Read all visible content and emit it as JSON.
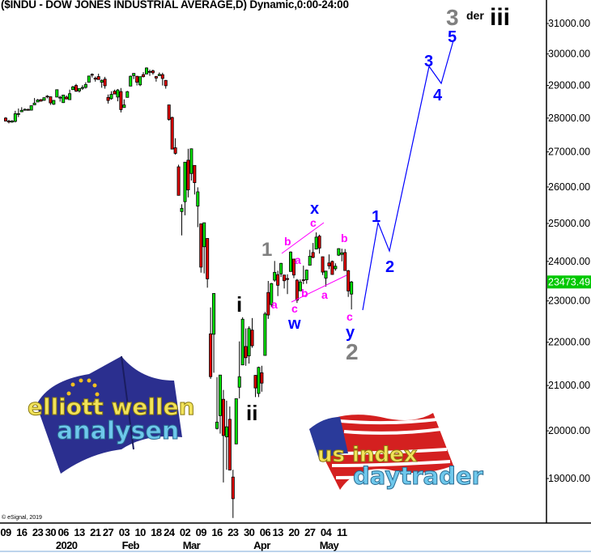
{
  "header": {
    "title": "($INDU - DOW JONES INDUSTRIAL AVERAGE,D) Dynamic,0:00-24:00"
  },
  "copyright": "© eSignal, 2019",
  "logos": {
    "left": {
      "line1": "elliott wellen",
      "line2": "analysen"
    },
    "right": {
      "line1": "us index",
      "line2": "daytrader"
    }
  },
  "colors": {
    "up": "#00e000",
    "down": "#e00000",
    "projection": "#0000ff",
    "current_price_bg": "#00c800",
    "wave_gray": "#808080",
    "wave_blue": "#0000ff",
    "wave_magenta": "#ff00ff",
    "wave_black": "#000000"
  },
  "chart_data": {
    "type": "candlestick",
    "title": "($INDU - DOW JONES INDUSTRIAL AVERAGE,D) Dynamic,0:00-24:00",
    "y_scale": "log",
    "ylim": [
      18100,
      31500
    ],
    "y_ticks": [
      "31000.00",
      "30000.00",
      "29000.00",
      "28000.00",
      "27000.00",
      "26000.00",
      "25000.00",
      "24000.00",
      "23000.00",
      "22000.00",
      "21000.00",
      "20000.00",
      "19000.00"
    ],
    "current_price": "23473.49",
    "x_ticks": [
      {
        "label": "09",
        "bar": 0
      },
      {
        "label": "16",
        "bar": 5
      },
      {
        "label": "23",
        "bar": 10
      },
      {
        "label": "30",
        "bar": 14
      },
      {
        "label": "06",
        "bar": 18
      },
      {
        "label": "13",
        "bar": 23
      },
      {
        "label": "21",
        "bar": 28
      },
      {
        "label": "27",
        "bar": 32
      },
      {
        "label": "03",
        "bar": 37
      },
      {
        "label": "10",
        "bar": 42
      },
      {
        "label": "18",
        "bar": 47
      },
      {
        "label": "24",
        "bar": 51
      },
      {
        "label": "02",
        "bar": 56
      },
      {
        "label": "09",
        "bar": 61
      },
      {
        "label": "16",
        "bar": 66
      },
      {
        "label": "23",
        "bar": 71
      },
      {
        "label": "30",
        "bar": 76
      },
      {
        "label": "06",
        "bar": 81
      },
      {
        "label": "13",
        "bar": 85
      },
      {
        "label": "20",
        "bar": 90
      },
      {
        "label": "27",
        "bar": 95
      },
      {
        "label": "04",
        "bar": 100
      },
      {
        "label": "11",
        "bar": 105
      }
    ],
    "month_labels": [
      {
        "label": "2020",
        "bar": 19
      },
      {
        "label": "Feb",
        "bar": 39
      },
      {
        "label": "Mar",
        "bar": 58
      },
      {
        "label": "Apr",
        "bar": 80
      },
      {
        "label": "May",
        "bar": 101
      }
    ],
    "candles_columns": [
      "date",
      "open",
      "high",
      "low",
      "close"
    ],
    "candles": [
      [
        "2019-12-09",
        28000,
        28030,
        27900,
        27909
      ],
      [
        "2019-12-10",
        27910,
        27950,
        27840,
        27881
      ],
      [
        "2019-12-11",
        27880,
        27940,
        27860,
        27911
      ],
      [
        "2019-12-12",
        27900,
        28220,
        27870,
        28132
      ],
      [
        "2019-12-13",
        28130,
        28290,
        28030,
        28135
      ],
      [
        "2019-12-16",
        28190,
        28330,
        28190,
        28235
      ],
      [
        "2019-12-17",
        28240,
        28290,
        28220,
        28267
      ],
      [
        "2019-12-18",
        28260,
        28290,
        28230,
        28239
      ],
      [
        "2019-12-19",
        28240,
        28380,
        28230,
        28376
      ],
      [
        "2019-12-20",
        28400,
        28610,
        28400,
        28455
      ],
      [
        "2019-12-23",
        28490,
        28580,
        28490,
        28551
      ],
      [
        "2019-12-24",
        28560,
        28580,
        28500,
        28515
      ],
      [
        "2019-12-26",
        28540,
        28630,
        28530,
        28621
      ],
      [
        "2019-12-27",
        28670,
        28700,
        28600,
        28645
      ],
      [
        "2019-12-30",
        28650,
        28660,
        28400,
        28462
      ],
      [
        "2019-12-31",
        28420,
        28550,
        28400,
        28538
      ],
      [
        "2020-01-02",
        28640,
        28870,
        28640,
        28868
      ],
      [
        "2020-01-03",
        28630,
        28680,
        28500,
        28634
      ],
      [
        "2020-01-06",
        28470,
        28710,
        28460,
        28703
      ],
      [
        "2020-01-07",
        28640,
        28690,
        28570,
        28583
      ],
      [
        "2020-01-08",
        28560,
        28870,
        28550,
        28745
      ],
      [
        "2020-01-09",
        28870,
        28990,
        28870,
        28956
      ],
      [
        "2020-01-10",
        29000,
        29050,
        28800,
        28823
      ],
      [
        "2020-01-13",
        28830,
        28910,
        28780,
        28907
      ],
      [
        "2020-01-14",
        28910,
        29010,
        28860,
        28939
      ],
      [
        "2020-01-15",
        28940,
        29100,
        28900,
        29030
      ],
      [
        "2020-01-16",
        29100,
        29300,
        29100,
        29297
      ],
      [
        "2020-01-17",
        29350,
        29380,
        29250,
        29348
      ],
      [
        "2020-01-21",
        29230,
        29280,
        29120,
        29196
      ],
      [
        "2020-01-22",
        29280,
        29370,
        29180,
        29186
      ],
      [
        "2020-01-23",
        29100,
        29190,
        28930,
        29160
      ],
      [
        "2020-01-24",
        29200,
        29270,
        28900,
        28990
      ],
      [
        "2020-01-27",
        28630,
        28720,
        28440,
        28535
      ],
      [
        "2020-01-28",
        28590,
        28820,
        28560,
        28723
      ],
      [
        "2020-01-29",
        28820,
        28870,
        28730,
        28734
      ],
      [
        "2020-01-30",
        28640,
        28890,
        28510,
        28859
      ],
      [
        "2020-01-31",
        28810,
        28920,
        28170,
        28256
      ],
      [
        "2020-02-03",
        28320,
        28570,
        28320,
        28399
      ],
      [
        "2020-02-04",
        28630,
        28830,
        28630,
        28807
      ],
      [
        "2020-02-05",
        28980,
        29310,
        28980,
        29290
      ],
      [
        "2020-02-06",
        29310,
        29380,
        29200,
        29379
      ],
      [
        "2020-02-07",
        29290,
        29290,
        29000,
        29102
      ],
      [
        "2020-02-10",
        29020,
        29280,
        28980,
        29276
      ],
      [
        "2020-02-11",
        29340,
        29420,
        29250,
        29276
      ],
      [
        "2020-02-12",
        29360,
        29570,
        29360,
        29551
      ],
      [
        "2020-02-13",
        29440,
        29500,
        29300,
        29423
      ],
      [
        "2020-02-14",
        29460,
        29500,
        29340,
        29398
      ],
      [
        "2020-02-18",
        29280,
        29300,
        29120,
        29232
      ],
      [
        "2020-02-19",
        29310,
        29410,
        29300,
        29348
      ],
      [
        "2020-02-20",
        29340,
        29400,
        29000,
        29219
      ],
      [
        "2020-02-21",
        29160,
        29170,
        28900,
        28992
      ],
      [
        "2020-02-24",
        28400,
        28400,
        27920,
        27960
      ],
      [
        "2020-02-25",
        28020,
        28040,
        27080,
        27081
      ],
      [
        "2020-02-26",
        27120,
        27400,
        26920,
        26957
      ],
      [
        "2020-02-27",
        26570,
        26630,
        25770,
        25766
      ],
      [
        "2020-02-28",
        25320,
        25520,
        24680,
        25409
      ],
      [
        "2020-03-02",
        25590,
        26710,
        25220,
        26703
      ],
      [
        "2020-03-03",
        26760,
        27090,
        25710,
        25917
      ],
      [
        "2020-03-04",
        26380,
        27100,
        26180,
        27090
      ],
      [
        "2020-03-05",
        26610,
        26610,
        25790,
        26121
      ],
      [
        "2020-03-06",
        25470,
        25990,
        24900,
        25864
      ],
      [
        "2020-03-09",
        24990,
        24990,
        23710,
        23851
      ],
      [
        "2020-03-10",
        24380,
        25020,
        23690,
        25018
      ],
      [
        "2020-03-11",
        24600,
        24600,
        23330,
        23553
      ],
      [
        "2020-03-12",
        22200,
        22840,
        21150,
        21200
      ],
      [
        "2020-03-13",
        22190,
        23190,
        21290,
        23185
      ],
      [
        "2020-03-16",
        20050,
        21190,
        20030,
        20189
      ],
      [
        "2020-03-17",
        20330,
        21240,
        19940,
        21237
      ],
      [
        "2020-03-18",
        20690,
        20900,
        18920,
        19899
      ],
      [
        "2020-03-19",
        19870,
        20660,
        19180,
        20087
      ],
      [
        "2020-03-20",
        20250,
        20530,
        19170,
        19174
      ],
      [
        "2020-03-23",
        19030,
        19180,
        18210,
        18592
      ],
      [
        "2020-03-24",
        19720,
        20710,
        19720,
        20704
      ],
      [
        "2020-03-25",
        20960,
        22020,
        20710,
        21200
      ],
      [
        "2020-03-26",
        21470,
        22600,
        21470,
        22552
      ],
      [
        "2020-03-27",
        21900,
        22330,
        21450,
        21637
      ],
      [
        "2020-03-30",
        21680,
        22380,
        21500,
        22327
      ],
      [
        "2020-03-31",
        22290,
        22580,
        21870,
        21917
      ],
      [
        "2020-04-01",
        21230,
        21240,
        20740,
        20944
      ],
      [
        "2020-04-02",
        20820,
        21430,
        20740,
        21413
      ],
      [
        "2020-04-03",
        21290,
        21450,
        20860,
        21053
      ],
      [
        "2020-04-06",
        21690,
        22730,
        21690,
        22680
      ],
      [
        "2020-04-07",
        23210,
        23500,
        22560,
        22654
      ],
      [
        "2020-04-08",
        22910,
        23450,
        22850,
        23434
      ],
      [
        "2020-04-09",
        23520,
        24010,
        23480,
        23719
      ],
      [
        "2020-04-13",
        23660,
        23760,
        23120,
        23390
      ],
      [
        "2020-04-14",
        23680,
        23960,
        23600,
        23949
      ],
      [
        "2020-04-15",
        23650,
        23650,
        23310,
        23505
      ],
      [
        "2020-04-16",
        23560,
        23670,
        23170,
        23538
      ],
      [
        "2020-04-17",
        23740,
        24260,
        23740,
        24242
      ],
      [
        "2020-04-20",
        24060,
        24060,
        23570,
        23650
      ],
      [
        "2020-04-21",
        23520,
        23550,
        22950,
        23019
      ],
      [
        "2020-04-22",
        23250,
        23540,
        23250,
        23475
      ],
      [
        "2020-04-23",
        23530,
        23890,
        23420,
        23515
      ],
      [
        "2020-04-24",
        23530,
        23790,
        23430,
        23775
      ],
      [
        "2020-04-27",
        23900,
        24300,
        23900,
        24134
      ],
      [
        "2020-04-28",
        24230,
        24480,
        24080,
        24102
      ],
      [
        "2020-04-29",
        24320,
        24760,
        24320,
        24634
      ],
      [
        "2020-04-30",
        24660,
        24700,
        24200,
        24346
      ],
      [
        "2020-05-01",
        24120,
        24120,
        23650,
        23724
      ],
      [
        "2020-05-04",
        23570,
        23760,
        23360,
        23750
      ],
      [
        "2020-05-05",
        23960,
        24180,
        23800,
        23883
      ],
      [
        "2020-05-06",
        24000,
        24020,
        23660,
        23664
      ],
      [
        "2020-05-07",
        23810,
        23950,
        23760,
        23875
      ],
      [
        "2020-05-08",
        24160,
        24340,
        24140,
        24331
      ],
      [
        "2020-05-11",
        24180,
        24330,
        24000,
        24221
      ],
      [
        "2020-05-12",
        24230,
        24320,
        23760,
        23765
      ],
      [
        "2020-05-13",
        23760,
        23780,
        23100,
        23248
      ],
      [
        "2020-05-14",
        23170,
        23500,
        22790,
        23473.49
      ]
    ],
    "wave_labels": [
      {
        "text": "3",
        "color": "gray"
      },
      {
        "text": "der",
        "color": "black"
      },
      {
        "text": "iii",
        "color": "black"
      },
      {
        "text": "5",
        "color": "blue"
      },
      {
        "text": "3",
        "color": "blue"
      },
      {
        "text": "4",
        "color": "blue"
      },
      {
        "text": "1",
        "color": "blue"
      },
      {
        "text": "2",
        "color": "blue"
      },
      {
        "text": "1",
        "color": "gray"
      },
      {
        "text": "2",
        "color": "gray"
      },
      {
        "text": "i",
        "color": "black"
      },
      {
        "text": "ii",
        "color": "black"
      },
      {
        "text": "x",
        "color": "blue"
      },
      {
        "text": "w",
        "color": "blue"
      },
      {
        "text": "y",
        "color": "blue"
      },
      {
        "text": "c",
        "color": "magenta"
      },
      {
        "text": "b",
        "color": "magenta"
      },
      {
        "text": "a",
        "color": "magenta"
      },
      {
        "text": "a",
        "color": "magenta"
      },
      {
        "text": "c",
        "color": "magenta"
      },
      {
        "text": "b",
        "color": "magenta"
      },
      {
        "text": "a",
        "color": "magenta"
      },
      {
        "text": "b",
        "color": "magenta"
      },
      {
        "text": "c",
        "color": "magenta"
      }
    ]
  }
}
